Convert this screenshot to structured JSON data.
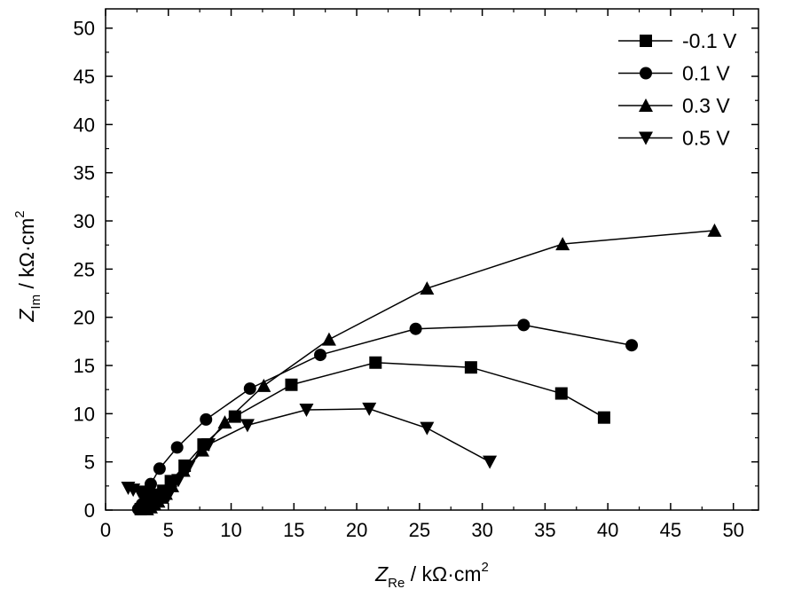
{
  "chart_data": {
    "type": "scatter",
    "xlabel": {
      "symbol": "Z",
      "sub": "Re",
      "unit": " / kΩ·cm",
      "sup": "2"
    },
    "ylabel": {
      "symbol": "Z",
      "sub": "Im",
      "unit": " / kΩ·cm",
      "sup": "2"
    },
    "xlim": [
      0,
      52
    ],
    "ylim": [
      0,
      52
    ],
    "xticks": [
      0,
      5,
      10,
      15,
      20,
      25,
      30,
      35,
      40,
      45,
      50
    ],
    "yticks": [
      0,
      5,
      10,
      15,
      20,
      25,
      30,
      35,
      40,
      45,
      50
    ],
    "grid": false,
    "legend_position": "top-right",
    "series": [
      {
        "name": "-0.1 V",
        "marker": "square",
        "x": [
          2.8,
          3.2,
          3.6,
          4.0,
          4.3,
          4.6,
          5.2,
          6.3,
          7.8,
          10.3,
          14.8,
          21.5,
          29.1,
          36.3,
          39.7
        ],
        "y": [
          0.1,
          0.4,
          0.8,
          1.2,
          1.6,
          2.0,
          3.0,
          4.6,
          6.8,
          9.7,
          13.0,
          15.3,
          14.8,
          12.1,
          9.6
        ]
      },
      {
        "name": "0.1 V",
        "marker": "circle",
        "x": [
          2.6,
          2.9,
          3.2,
          3.6,
          4.3,
          5.7,
          8.0,
          11.5,
          17.1,
          24.7,
          33.3,
          41.9
        ],
        "y": [
          0.1,
          0.6,
          1.5,
          2.7,
          4.3,
          6.5,
          9.4,
          12.6,
          16.1,
          18.8,
          19.2,
          17.1
        ]
      },
      {
        "name": "0.3 V",
        "marker": "triangle-up",
        "x": [
          3.3,
          3.6,
          3.9,
          4.2,
          4.5,
          4.8,
          5.3,
          6.2,
          7.7,
          9.5,
          12.6,
          17.8,
          25.6,
          36.4,
          48.5
        ],
        "y": [
          0.1,
          0.3,
          0.6,
          0.9,
          1.3,
          1.7,
          2.5,
          4.1,
          6.2,
          9.1,
          12.9,
          17.7,
          23.0,
          27.6,
          29.0
        ]
      },
      {
        "name": "0.5 V",
        "marker": "triangle-down",
        "x": [
          1.8,
          2.2,
          2.7,
          3.2,
          3.7,
          4.1,
          4.5,
          5.0,
          5.8,
          6.6,
          8.2,
          11.3,
          16.0,
          21.0,
          25.6,
          30.6
        ],
        "y": [
          2.3,
          2.1,
          1.9,
          1.7,
          1.5,
          1.3,
          1.1,
          1.5,
          3.1,
          4.5,
          6.8,
          8.8,
          10.4,
          10.5,
          8.5,
          5.0
        ]
      }
    ]
  }
}
